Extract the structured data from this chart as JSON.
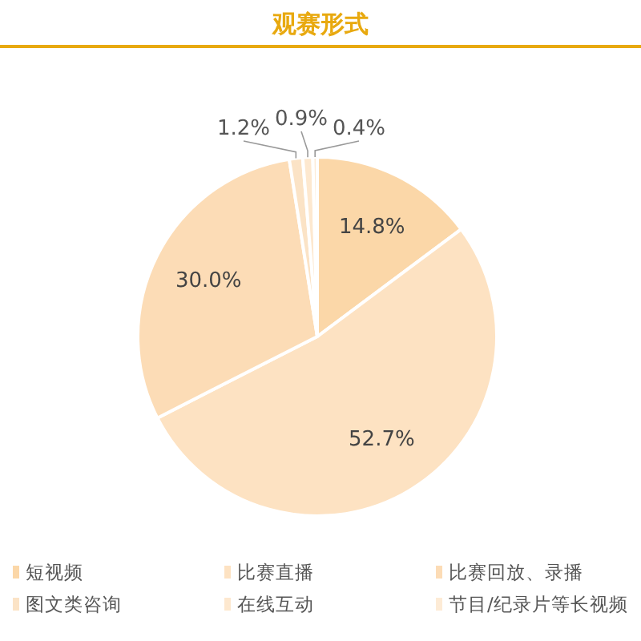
{
  "chart_data": {
    "type": "pie",
    "title": "观赛形式",
    "categories": [
      "短视频",
      "比赛直播",
      "比赛回放、录播",
      "图文类咨询",
      "在线互动",
      "节目/纪录片等长视频"
    ],
    "values": [
      14.8,
      52.7,
      30.0,
      1.2,
      0.9,
      0.4
    ],
    "value_labels": [
      "14.8%",
      "52.7%",
      "30.0%",
      "1.2%",
      "0.9%",
      "0.4%"
    ],
    "colors": [
      "#fbd7a8",
      "#fde2c2",
      "#fcdcb6",
      "#fbe3c6",
      "#fde8cf",
      "#fdebd6"
    ],
    "legend": "bottom"
  }
}
